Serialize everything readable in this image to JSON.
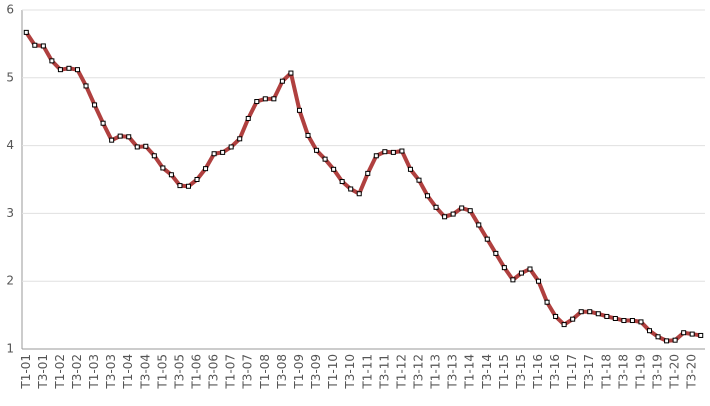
{
  "chart_data": {
    "type": "line",
    "categories": [
      "T1-01",
      null,
      "T3-01",
      null,
      "T1-02",
      null,
      "T3-02",
      null,
      "T1-03",
      null,
      "T3-03",
      null,
      "T1-04",
      null,
      "T3-04",
      null,
      "T1-05",
      null,
      "T3-05",
      null,
      "T1-06",
      null,
      "T3-06",
      null,
      "T1-07",
      null,
      "T3-07",
      null,
      "T1-08",
      null,
      "T3-08",
      null,
      "T1-09",
      null,
      "T3-09",
      null,
      "T1-10",
      null,
      "T3-10",
      null,
      "T1-11",
      null,
      "T3-11",
      null,
      "T1-12",
      null,
      "T3-12",
      null,
      "T1-13",
      null,
      "T3-13",
      null,
      "T1-14",
      null,
      "T3-14",
      null,
      "T1-15",
      null,
      "T3-15",
      null,
      "T1-16",
      null,
      "T3-16",
      null,
      "T1-17",
      null,
      "T3-17",
      null,
      "T1-18",
      null,
      "T3-18",
      null,
      "T1-19",
      null,
      "T3-19",
      null,
      "T1-20",
      null,
      "T3-20",
      null
    ],
    "values": [
      5.67,
      5.48,
      5.47,
      5.25,
      5.12,
      5.14,
      5.12,
      4.88,
      4.6,
      4.33,
      4.08,
      4.14,
      4.13,
      3.98,
      3.99,
      3.85,
      3.67,
      3.57,
      3.41,
      3.4,
      3.5,
      3.66,
      3.88,
      3.9,
      3.98,
      4.1,
      4.4,
      4.65,
      4.69,
      4.69,
      4.95,
      5.07,
      4.52,
      4.15,
      3.93,
      3.8,
      3.65,
      3.47,
      3.36,
      3.29,
      3.59,
      3.85,
      3.91,
      3.9,
      3.92,
      3.65,
      3.49,
      3.26,
      3.09,
      2.95,
      2.99,
      3.08,
      3.04,
      2.83,
      2.62,
      2.41,
      2.2,
      2.02,
      2.12,
      2.18,
      2.0,
      1.69,
      1.48,
      1.36,
      1.44,
      1.55,
      1.55,
      1.52,
      1.48,
      1.45,
      1.42,
      1.42,
      1.4,
      1.27,
      1.18,
      1.12,
      1.13,
      1.24,
      1.22,
      1.2
    ],
    "color": "#b0403f",
    "marker_color": "#ffffff",
    "ylim": [
      1,
      6
    ],
    "yticks": [
      1,
      2,
      3,
      4,
      5,
      6
    ],
    "grid": true
  }
}
